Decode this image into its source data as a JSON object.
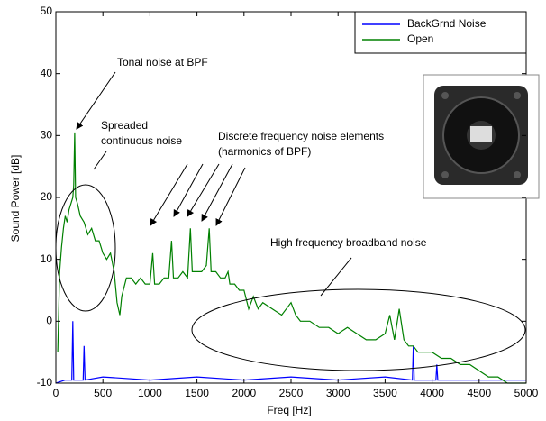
{
  "chart_data": {
    "type": "line",
    "xlabel": "Freq [Hz]",
    "ylabel": "Sound Power [dB]",
    "xlim": [
      0,
      5000
    ],
    "xticks": [
      0,
      500,
      1000,
      1500,
      2000,
      2500,
      3000,
      3500,
      4000,
      4500,
      5000
    ],
    "ylim": [
      -10,
      50
    ],
    "yticks": [
      -10,
      0,
      10,
      20,
      30,
      40,
      50
    ],
    "legend": "upper right",
    "series": [
      {
        "name": "BackGrnd Noise",
        "color": "#0000ff",
        "x": [
          0,
          100,
          170,
          180,
          190,
          290,
          300,
          310,
          500,
          1000,
          1500,
          2000,
          2500,
          3000,
          3500,
          3790,
          3800,
          3810,
          4040,
          4050,
          4060,
          4500,
          5000
        ],
        "values": [
          -10,
          -9.5,
          -9.5,
          0,
          -9.5,
          -9.5,
          -4,
          -9.5,
          -9,
          -9.5,
          -9,
          -9.5,
          -9,
          -9.5,
          -9,
          -9.5,
          -4,
          -9.5,
          -9.5,
          -7,
          -9.5,
          -9.5,
          -9.5
        ]
      },
      {
        "name": "Open",
        "color": "#008000",
        "x": [
          20,
          40,
          60,
          80,
          100,
          120,
          140,
          160,
          180,
          190,
          200,
          210,
          230,
          260,
          300,
          340,
          380,
          420,
          460,
          500,
          540,
          580,
          620,
          650,
          680,
          700,
          750,
          800,
          850,
          900,
          950,
          1000,
          1030,
          1050,
          1100,
          1150,
          1200,
          1230,
          1250,
          1300,
          1350,
          1400,
          1430,
          1450,
          1500,
          1550,
          1600,
          1630,
          1650,
          1700,
          1750,
          1800,
          1830,
          1850,
          1900,
          1950,
          2000,
          2050,
          2100,
          2150,
          2200,
          2300,
          2400,
          2500,
          2550,
          2600,
          2700,
          2800,
          2900,
          3000,
          3100,
          3200,
          3300,
          3400,
          3500,
          3550,
          3600,
          3650,
          3700,
          3750,
          3800,
          3850,
          3900,
          4000,
          4100,
          4200,
          4300,
          4400,
          4500,
          4600,
          4700,
          4800,
          4900,
          5000
        ],
        "values": [
          -5,
          8,
          12,
          15,
          17,
          16,
          18,
          19,
          20,
          22,
          30.5,
          20,
          19,
          17,
          16,
          14,
          15,
          13,
          13,
          11,
          10,
          11,
          8,
          3,
          1,
          4,
          7,
          7,
          6,
          7,
          6,
          6,
          11,
          6,
          6,
          7,
          7,
          13,
          7,
          7,
          8,
          7,
          15,
          8,
          8,
          8,
          9,
          15,
          8,
          8,
          7,
          7,
          8,
          6,
          6,
          5,
          5,
          2,
          4,
          2,
          3,
          2,
          1,
          3,
          1,
          0,
          0,
          -1,
          -1,
          -2,
          -1,
          -2,
          -3,
          -3,
          -2,
          1,
          -3,
          2,
          -3,
          -4,
          -4,
          -5,
          -5,
          -5,
          -6,
          -6,
          -7,
          -7,
          -8,
          -9,
          -9,
          -10,
          -10,
          -10
        ]
      }
    ],
    "annotations": [
      "Tonal noise at BPF",
      "Spreaded",
      "continuous noise",
      "Discrete frequency noise elements",
      "(harmonics of BPF)",
      "High frequency broadband noise"
    ]
  }
}
